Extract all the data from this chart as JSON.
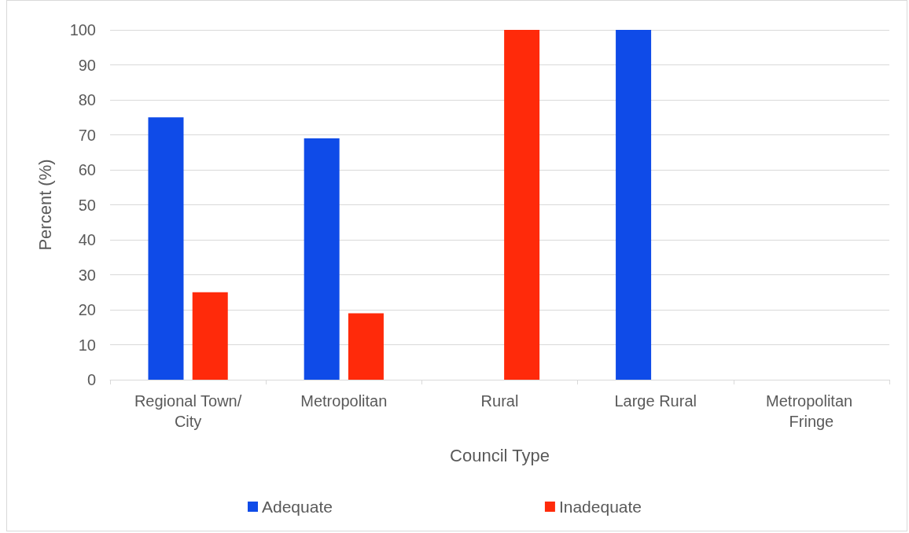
{
  "chart_data": {
    "type": "bar",
    "xlabel": "Council Type",
    "ylabel": "Percent (%)",
    "categories": [
      "Regional Town/City",
      "Metropolitan",
      "Rural",
      "Large Rural",
      "Metropolitan Fringe"
    ],
    "series": [
      {
        "name": "Adequate",
        "color": "#0f4be8",
        "values": [
          75,
          69,
          0,
          100,
          0
        ]
      },
      {
        "name": "Inadequate",
        "color": "#ff2a0a",
        "values": [
          25,
          19,
          100,
          0,
          0
        ]
      }
    ],
    "ylim": [
      0,
      100
    ],
    "yticks": [
      0,
      10,
      20,
      30,
      40,
      50,
      60,
      70,
      80,
      90,
      100
    ],
    "grid": "y",
    "legend": "bottom"
  }
}
